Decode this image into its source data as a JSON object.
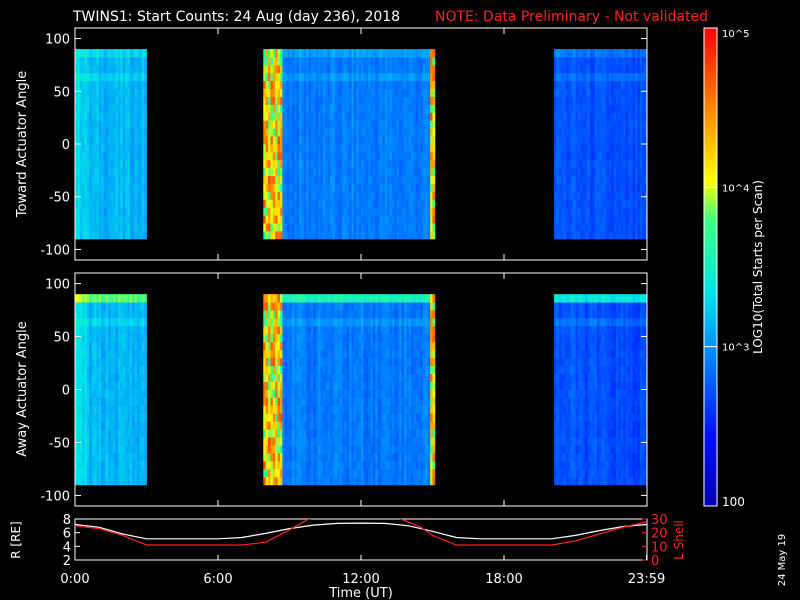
{
  "header": {
    "title": "TWINS1: Start Counts: 24 Aug (day 236), 2018",
    "note": "NOTE: Data Preliminary - Not validated"
  },
  "colors": {
    "background": "#000000",
    "note_text": "#ff2020",
    "r_line": "#ffffff",
    "lshell_line": "#ff2020"
  },
  "footer": {
    "stamp": "24 May 19"
  },
  "chart_data": [
    {
      "id": "toward",
      "type": "heatmap",
      "title": "",
      "xlabel": "",
      "ylabel": "Toward Actuator Angle",
      "xlim": [
        0,
        24
      ],
      "ylim": [
        -110,
        110
      ],
      "yticks": [
        -100,
        -50,
        0,
        50,
        100
      ],
      "grid": false,
      "data_angle_range": [
        -90,
        90
      ],
      "data_intervals_hours": [
        [
          0,
          3.0
        ],
        [
          7.9,
          15.1
        ],
        [
          20.1,
          24
        ]
      ],
      "edge_hot_intervals_hours": [
        [
          7.9,
          8.6
        ],
        [
          14.9,
          15.1
        ]
      ],
      "typical_log10_counts": 2.9
    },
    {
      "id": "away",
      "type": "heatmap",
      "title": "",
      "xlabel": "",
      "ylabel": "Away Actuator Angle",
      "xlim": [
        0,
        24
      ],
      "ylim": [
        -110,
        110
      ],
      "yticks": [
        -100,
        -50,
        0,
        50,
        100
      ],
      "grid": false,
      "data_angle_range": [
        -90,
        90
      ],
      "data_intervals_hours": [
        [
          0,
          3.0
        ],
        [
          7.9,
          15.1
        ],
        [
          20.1,
          24
        ]
      ],
      "edge_hot_intervals_hours": [
        [
          7.9,
          8.6
        ],
        [
          14.9,
          15.1
        ]
      ],
      "typical_log10_counts": 2.9
    },
    {
      "id": "colorbar",
      "type": "heatmap",
      "title": "",
      "label": "LOG10(Total Starts per Scan)",
      "scale": "log",
      "range": [
        100,
        100000
      ],
      "tick_labels": [
        "10^5",
        "10^4",
        "10^3",
        "100"
      ],
      "tick_values": [
        100000,
        10000,
        1000,
        100
      ]
    },
    {
      "id": "orbit",
      "type": "line",
      "title": "",
      "xlabel": "Time (UT)",
      "x_tick_labels": [
        "0:00",
        "6:00",
        "12:00",
        "18:00",
        "23:59"
      ],
      "x_tick_values": [
        0,
        6,
        12,
        18,
        23.98
      ],
      "xlim": [
        0,
        24
      ],
      "left_axis": {
        "label": "R [RE]",
        "ylim": [
          2,
          8
        ],
        "ticks": [
          2,
          4,
          6,
          8
        ]
      },
      "right_axis": {
        "label": "L Shell",
        "ylim": [
          0,
          30
        ],
        "ticks": [
          0,
          10,
          20,
          30
        ]
      },
      "series": [
        {
          "name": "R [RE]",
          "axis": "left",
          "x": [
            0,
            1,
            2,
            3,
            4,
            5,
            6,
            7,
            8,
            9,
            10,
            11,
            12,
            13,
            14,
            15,
            16,
            17,
            18,
            19,
            20,
            21,
            22,
            23,
            24
          ],
          "y": [
            7.2,
            6.8,
            5.8,
            5.1,
            5.1,
            5.1,
            5.1,
            5.3,
            5.9,
            6.6,
            7.1,
            7.35,
            7.4,
            7.35,
            7.0,
            6.2,
            5.3,
            5.1,
            5.1,
            5.1,
            5.1,
            5.6,
            6.3,
            6.9,
            7.2
          ]
        },
        {
          "name": "L Shell",
          "axis": "right",
          "x": [
            0,
            1,
            2,
            3,
            4,
            5,
            6,
            7,
            8,
            9,
            9.8,
            11.3,
            13.0,
            14.5,
            15,
            16,
            17,
            18,
            19,
            20,
            21,
            22,
            23,
            24
          ],
          "y": [
            25,
            23,
            18,
            11,
            11,
            11,
            11,
            11,
            13,
            22,
            30,
            35,
            35,
            24,
            18,
            11,
            11,
            11,
            11,
            11,
            14,
            19,
            24,
            28
          ]
        }
      ]
    }
  ]
}
